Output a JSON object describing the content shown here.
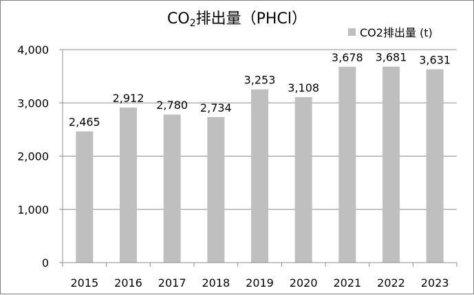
{
  "chart_data": {
    "type": "bar",
    "title_main": "CO",
    "title_sub": "2",
    "title_rest": "排出量（PHCl）",
    "legend": [
      {
        "name": "CO2排出量 (t)",
        "color": "#bfbfbf"
      }
    ],
    "categories": [
      "2015",
      "2016",
      "2017",
      "2018",
      "2019",
      "2020",
      "2021",
      "2022",
      "2023"
    ],
    "series": [
      {
        "name": "CO2排出量 (t)",
        "values": [
          2465,
          2912,
          2780,
          2734,
          3253,
          3108,
          3678,
          3681,
          3631
        ],
        "labels": [
          "2,465",
          "2,912",
          "2,780",
          "2,734",
          "3,253",
          "3,108",
          "3,678",
          "3,681",
          "3,631"
        ],
        "color": "#bfbfbf"
      }
    ],
    "yticks": [
      {
        "value": 0,
        "label": "0"
      },
      {
        "value": 1000,
        "label": "1,000"
      },
      {
        "value": 2000,
        "label": "2,000"
      },
      {
        "value": 3000,
        "label": "3,000"
      },
      {
        "value": 4000,
        "label": "4,000"
      }
    ],
    "ylim": [
      0,
      4000
    ],
    "grid": true,
    "legend_position": "top-right"
  }
}
